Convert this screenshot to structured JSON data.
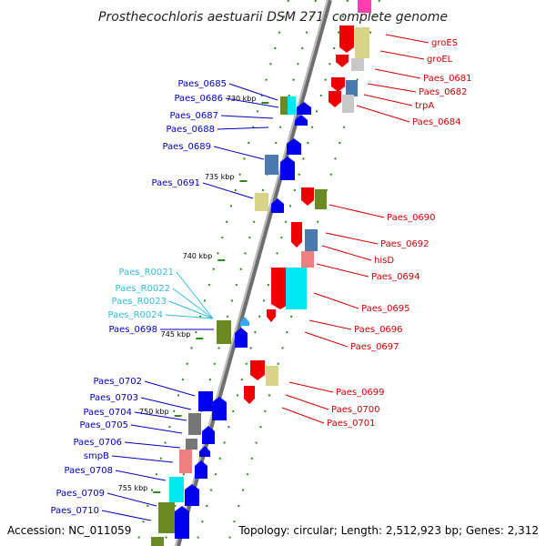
{
  "title": "Prosthecochloris aestuarii DSM 271, complete genome",
  "accession": "Accession: NC_011059",
  "topology": "Topology: circular; Length: 2,512,923 bp; Genes: 2,312",
  "colors": {
    "forward_label": "#0000bb",
    "reverse_label": "#cc0000",
    "rna_label": "#33bbdd",
    "backbone": "#888888",
    "tick": "#2a8a1a"
  },
  "ticks": [
    "730 kbp",
    "735 kbp",
    "740 kbp",
    "745 kbp",
    "750 kbp",
    "755 kbp"
  ],
  "forward_labels": [
    "Paes_0685",
    "Paes_0686",
    "Paes_0687",
    "Paes_0688",
    "Paes_0689",
    "Paes_0691",
    "Paes_0698",
    "Paes_0702",
    "Paes_0703",
    "Paes_0704",
    "Paes_0705",
    "Paes_0706",
    "smpB",
    "Paes_0708",
    "Paes_0709",
    "Paes_0710"
  ],
  "rna_labels": [
    "Paes_R0021",
    "Paes_R0022",
    "Paes_R0023",
    "Paes_R0024"
  ],
  "reverse_labels": [
    "groES",
    "groEL",
    "Paes_0681",
    "Paes_0682",
    "trpA",
    "Paes_0684",
    "Paes_0690",
    "Paes_0692",
    "hisD",
    "Paes_0694",
    "Paes_0695",
    "Paes_0696",
    "Paes_0697",
    "Paes_0699",
    "Paes_0700",
    "Paes_0701"
  ]
}
